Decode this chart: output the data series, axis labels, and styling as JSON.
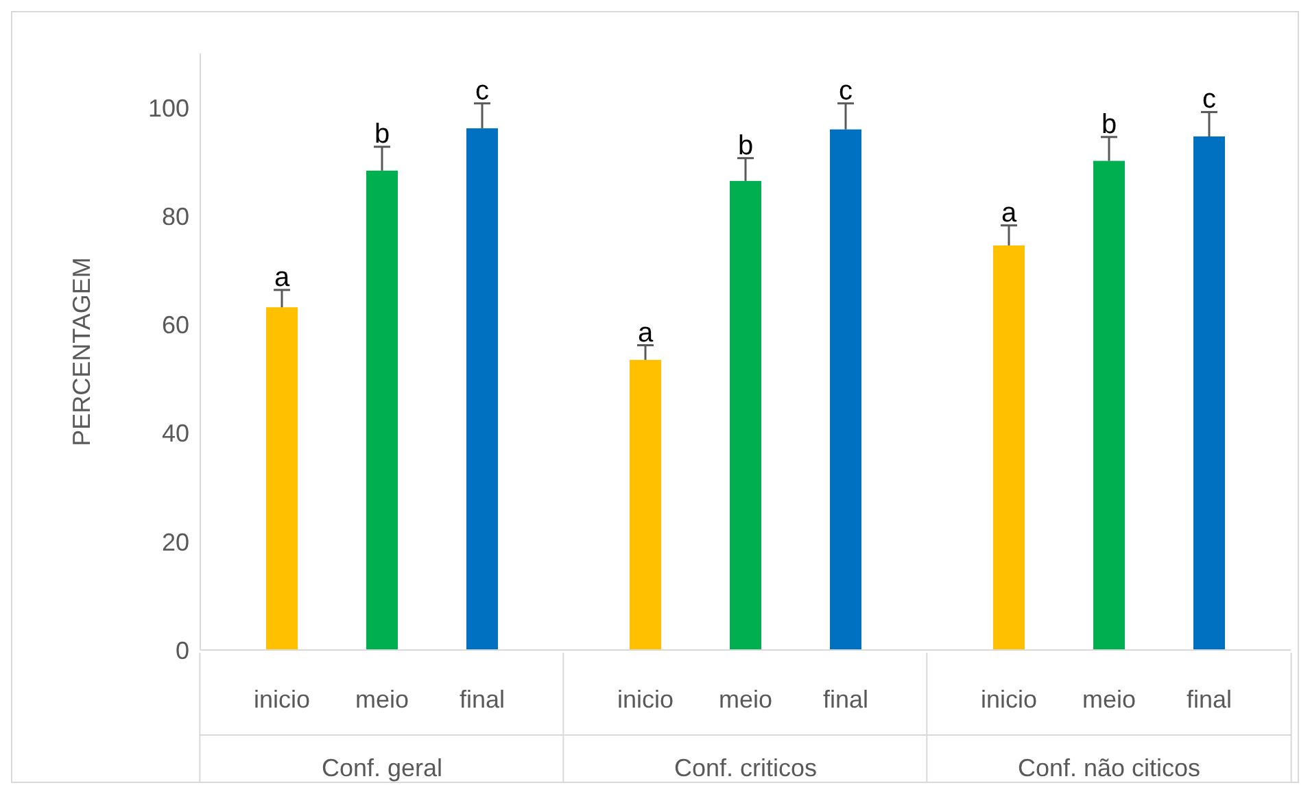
{
  "chart_data": {
    "type": "bar",
    "ylabel": "PERCENTAGEM",
    "categories": [
      "Conf. geral",
      "Conf. criticos",
      "Conf. não citicos"
    ],
    "ylim": [
      0,
      110
    ],
    "yticks": [
      0,
      20,
      40,
      60,
      80,
      100
    ],
    "series": [
      {
        "name": "inicio",
        "color": "#ffc000",
        "values": [
          63.2,
          53.5,
          74.6
        ],
        "errors": [
          [
            63.2,
            66.4
          ],
          [
            53.5,
            56.2
          ],
          [
            74.6,
            78.3
          ]
        ],
        "value_labels": [
          "a",
          "a",
          "a"
        ]
      },
      {
        "name": "meio",
        "color": "#00b050",
        "values": [
          88.4,
          86.5,
          90.2
        ],
        "errors": [
          [
            88.4,
            92.8
          ],
          [
            86.5,
            90.7
          ],
          [
            90.2,
            94.6
          ]
        ],
        "value_labels": [
          "b",
          "b",
          "b"
        ]
      },
      {
        "name": "final",
        "color": "#0070c0",
        "values": [
          96.2,
          96.0,
          94.7
        ],
        "errors": [
          [
            96.2,
            100.8
          ],
          [
            96.0,
            100.8
          ],
          [
            94.7,
            99.2
          ]
        ],
        "value_labels": [
          "c",
          "c",
          "c"
        ]
      }
    ]
  }
}
